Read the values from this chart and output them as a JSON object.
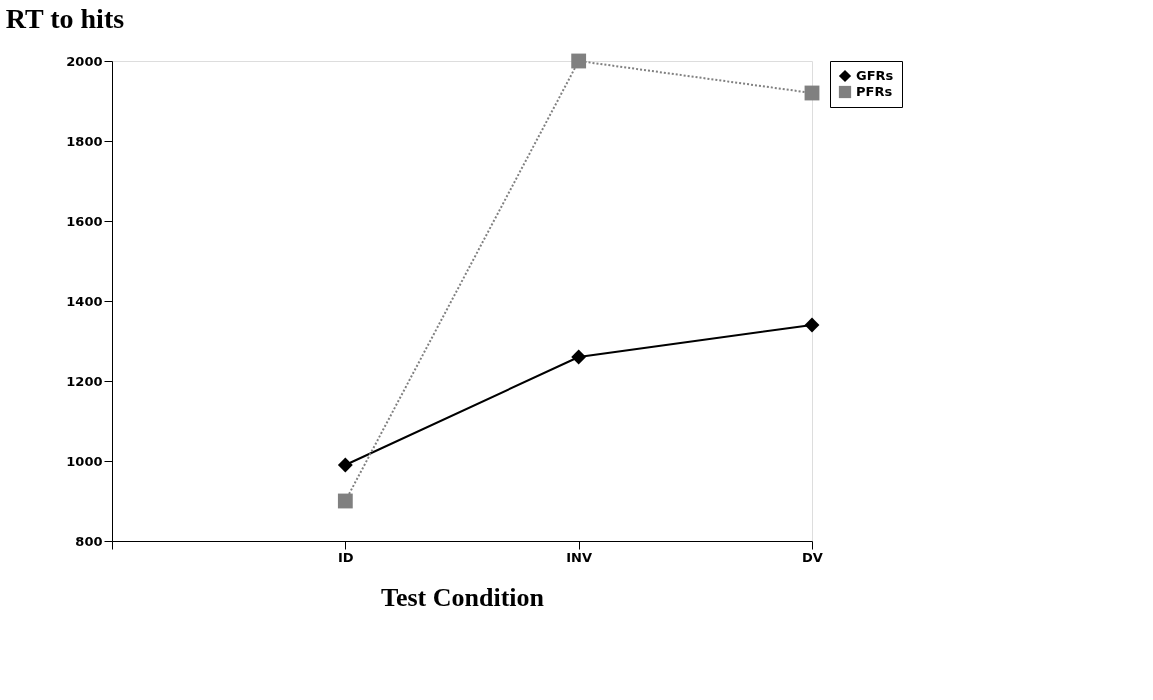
{
  "chart_data": {
    "type": "line",
    "title": "RT to hits",
    "xlabel": "Test Condition",
    "categories": [
      null,
      "ID",
      "INV",
      "DV"
    ],
    "series": [
      {
        "name": "GFRs",
        "color": "#000000",
        "marker": "diamond",
        "line_style": "solid",
        "values": [
          null,
          990,
          1260,
          1340
        ]
      },
      {
        "name": "PFRs",
        "color": "#808080",
        "marker": "square",
        "line_style": "dotted",
        "values": [
          null,
          900,
          2000,
          1920
        ]
      }
    ],
    "ylim": [
      800,
      2000
    ],
    "yticks": [
      800,
      1000,
      1200,
      1400,
      1600,
      1800,
      2000
    ],
    "grid": false,
    "legend": "top right"
  }
}
